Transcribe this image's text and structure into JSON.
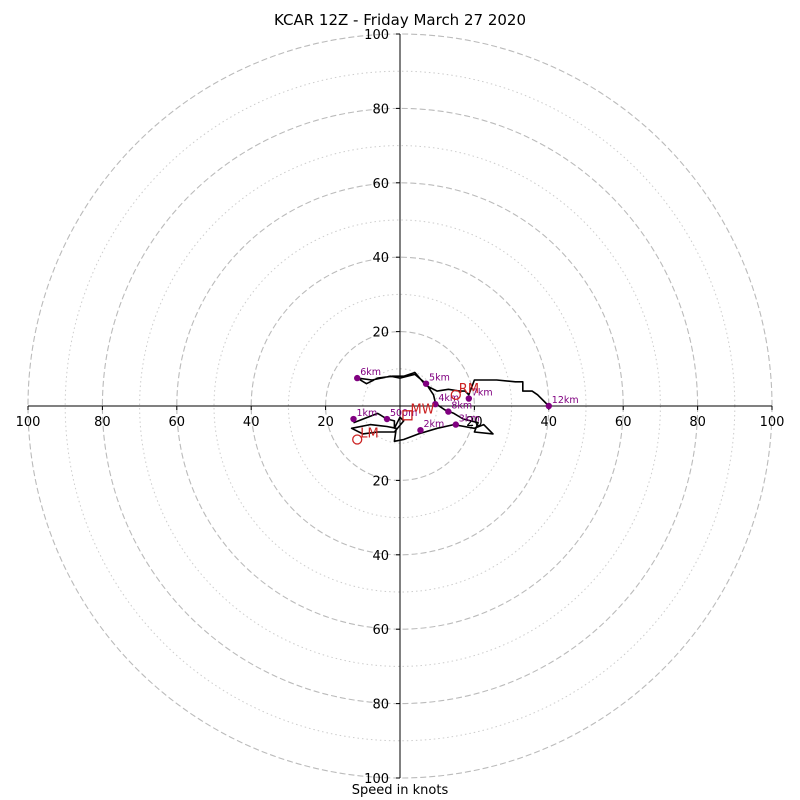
{
  "chart_data": {
    "type": "hodograph",
    "title": "KCAR 12Z - Friday March 27 2020",
    "xlabel": "Speed in knots",
    "units": "knots",
    "rings": [
      20,
      40,
      60,
      80,
      100
    ],
    "minor_rings": [
      10,
      30,
      50,
      70,
      90
    ],
    "axis_ticks": {
      "left": [
        "100",
        "80",
        "60",
        "40",
        "20"
      ],
      "right": [
        "20",
        "40",
        "60",
        "80",
        "100"
      ],
      "top": [
        "20",
        "40",
        "60",
        "80",
        "100"
      ],
      "bottom": [
        "20",
        "40",
        "60",
        "80",
        "100"
      ]
    },
    "grid": true,
    "range": [
      -100,
      100
    ],
    "hodograph_line": {
      "color": "#000000",
      "points": [
        [
          -12.5,
          -4.5
        ],
        [
          -6,
          -2
        ],
        [
          -3.5,
          -3.5
        ],
        [
          -1.5,
          -4
        ],
        [
          -1.5,
          -6
        ],
        [
          0,
          -3
        ],
        [
          1,
          -4
        ],
        [
          -1.5,
          -7
        ],
        [
          -4,
          -7
        ],
        [
          -6,
          -7
        ],
        [
          -10,
          -7.5
        ],
        [
          -13,
          -6
        ],
        [
          -8,
          -5
        ],
        [
          -3.5,
          -5.5
        ],
        [
          -1,
          -6
        ],
        [
          -1.5,
          -9.5
        ],
        [
          1,
          -9
        ],
        [
          5,
          -7.5
        ],
        [
          10,
          -6
        ],
        [
          14.5,
          -5
        ],
        [
          20,
          -6
        ],
        [
          22.5,
          -5
        ],
        [
          25,
          -7.5
        ],
        [
          20,
          -7
        ],
        [
          21,
          -4.5
        ],
        [
          17,
          -3.5
        ],
        [
          14.5,
          -2
        ],
        [
          12,
          -1
        ],
        [
          10.5,
          0
        ],
        [
          9.5,
          1
        ],
        [
          9,
          3
        ],
        [
          7,
          6
        ],
        [
          4,
          8.5
        ],
        [
          0,
          7.5
        ],
        [
          -2.5,
          8
        ],
        [
          -7.5,
          7
        ],
        [
          -11.5,
          7.5
        ],
        [
          -9,
          6
        ],
        [
          -6,
          7.5
        ],
        [
          -2,
          8
        ],
        [
          1,
          8
        ],
        [
          4,
          9
        ],
        [
          7,
          5.5
        ],
        [
          10,
          4
        ],
        [
          13,
          4.5
        ],
        [
          16,
          4
        ],
        [
          17.5,
          4
        ],
        [
          18.5,
          3
        ],
        [
          20,
          7
        ],
        [
          26,
          7
        ],
        [
          31,
          6.5
        ],
        [
          33,
          6.5
        ],
        [
          33,
          4
        ],
        [
          35.5,
          4
        ],
        [
          37,
          3
        ],
        [
          40,
          0
        ]
      ]
    },
    "height_markers": [
      {
        "label": "1km",
        "u": -12.5,
        "v": -3.5
      },
      {
        "label": "2km",
        "u": 5.5,
        "v": -6.5
      },
      {
        "label": "3km",
        "u": 15,
        "v": -5
      },
      {
        "label": "4km",
        "u": 9.5,
        "v": 0.5
      },
      {
        "label": "5km",
        "u": 7,
        "v": 6
      },
      {
        "label": "6km",
        "u": -11.5,
        "v": 7.5
      },
      {
        "label": "7km",
        "u": 18.5,
        "v": 2
      },
      {
        "label": "8km",
        "u": 13,
        "v": -1.5
      },
      {
        "label": "12km",
        "u": 40,
        "v": 0
      },
      {
        "label": "500m",
        "u": -3.5,
        "v": -3.5
      }
    ],
    "storm_motion": {
      "rm": {
        "label": "RM",
        "u": 15,
        "v": 3
      },
      "lm": {
        "label": "LM",
        "u": -11.5,
        "v": -9
      },
      "mw": {
        "label": "MW",
        "u": 2,
        "v": -2.5
      }
    },
    "colors": {
      "grid": "#bbbbbb",
      "minor_grid": "#cccccc",
      "trace": "#000000",
      "marker": "#800080",
      "marker_label": "#800080",
      "storm_motion": "#cc2222"
    }
  }
}
